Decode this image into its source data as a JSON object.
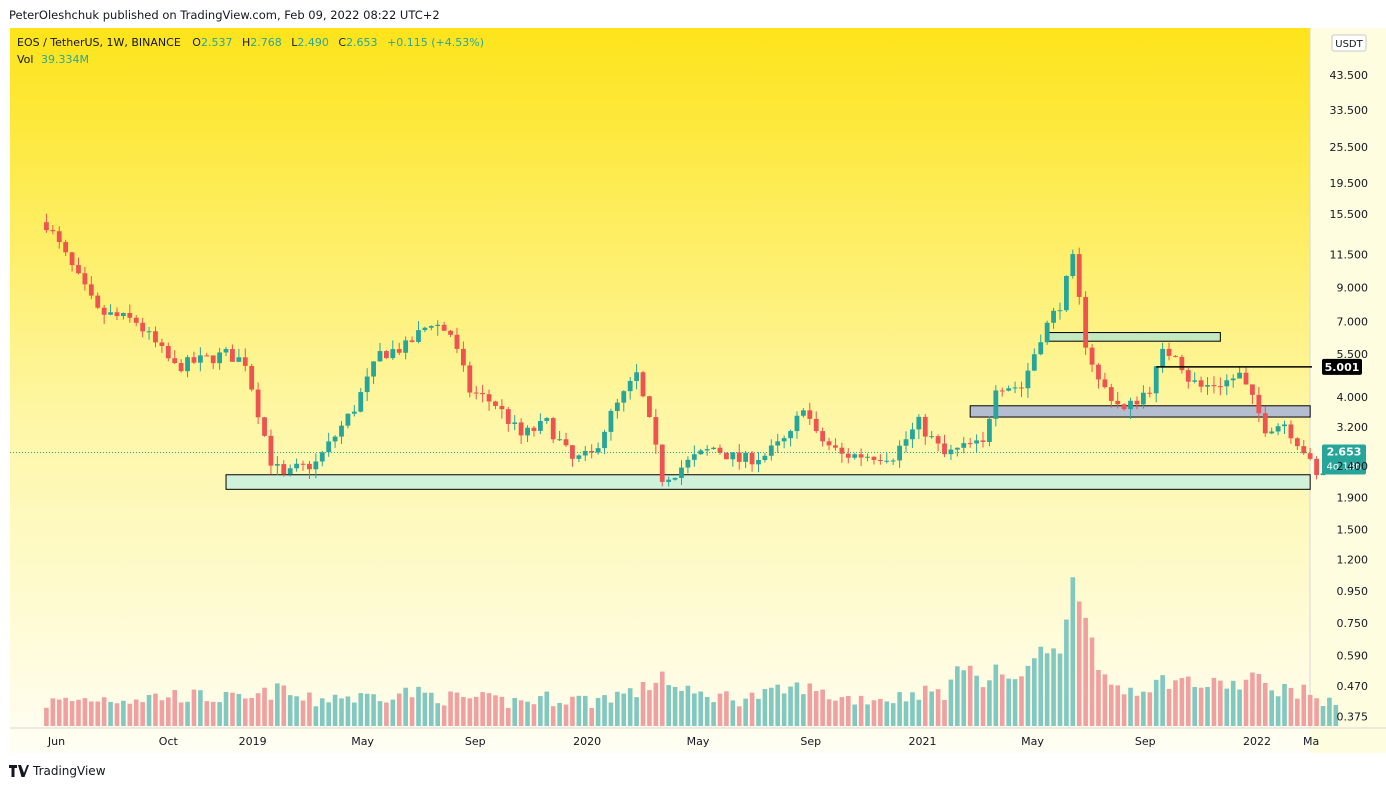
{
  "header": {
    "published_by": "PeterOleshchuk published on TradingView.com, Feb 09, 2022 08:22 UTC+2"
  },
  "legend": {
    "symbol": "EOS / TetherUS, 1W, BINANCE",
    "o_label": "O",
    "o_value": "2.537",
    "h_label": "H",
    "h_value": "2.768",
    "l_label": "L",
    "l_value": "2.490",
    "c_label": "C",
    "c_value": "2.653",
    "change": "+0.115 (+4.53%)",
    "vol_label": "Vol",
    "vol_value": "39.334M"
  },
  "footer": {
    "brand": "TradingView"
  },
  "colors": {
    "up": "#26a69a",
    "down": "#ef5350",
    "vol_up": "#80c8c0",
    "vol_down": "#f0a0a0",
    "bg_top": "#fde41a",
    "bg_bottom": "#fffef4",
    "axis_text": "#131722"
  },
  "chart_data": {
    "type": "candlestick",
    "symbol": "EOS / TetherUS",
    "interval": "1W",
    "exchange": "BINANCE",
    "currency": "USDT",
    "y_scale": "log",
    "ylim": [
      0.35,
      58
    ],
    "y_ticks": [
      "43.500",
      "33.500",
      "25.500",
      "19.500",
      "15.500",
      "11.500",
      "9.000",
      "7.000",
      "5.500",
      "4.000",
      "3.200",
      "2.400",
      "1.900",
      "1.500",
      "1.200",
      "0.950",
      "0.750",
      "0.590",
      "0.470",
      "0.375"
    ],
    "y_tick_values": [
      43.5,
      33.5,
      25.5,
      19.5,
      15.5,
      11.5,
      9.0,
      7.0,
      5.5,
      4.0,
      3.2,
      2.4,
      1.9,
      1.5,
      1.2,
      0.95,
      0.75,
      0.59,
      0.47,
      0.375
    ],
    "x_ticks": [
      "Jun",
      "Oct",
      "2019",
      "May",
      "Sep",
      "2020",
      "May",
      "Sep",
      "2021",
      "May",
      "Sep",
      "2022",
      "Ma"
    ],
    "x_tick_dates": [
      "2018-06-01",
      "2018-10-01",
      "2019-01-01",
      "2019-05-01",
      "2019-09-01",
      "2020-01-01",
      "2020-05-01",
      "2020-09-01",
      "2021-01-01",
      "2021-05-01",
      "2021-09-01",
      "2022-01-01",
      "2022-03-01"
    ],
    "x_range": [
      "2018-05-14",
      "2022-03-14"
    ],
    "first_candle": "2018-05-21",
    "last_price": "2.653",
    "last_price_value": 2.653,
    "countdown": "4d 18h",
    "line_label": "5.001",
    "line_level": 5.001,
    "anchors": [
      [
        0,
        14.5,
        0.415
      ],
      [
        8,
        7.5,
        0.43
      ],
      [
        14,
        7.0,
        0.43
      ],
      [
        20,
        5.0,
        0.44
      ],
      [
        28,
        5.5,
        0.43
      ],
      [
        31,
        5.2,
        0.42
      ],
      [
        35,
        2.5,
        0.45
      ],
      [
        37,
        2.2,
        0.46
      ],
      [
        39,
        2.35,
        0.43
      ],
      [
        42,
        2.45,
        0.42
      ],
      [
        45,
        3.0,
        0.44
      ],
      [
        48,
        3.7,
        0.43
      ],
      [
        52,
        5.5,
        0.44
      ],
      [
        56,
        5.8,
        0.45
      ],
      [
        60,
        7.0,
        0.44
      ],
      [
        63,
        6.4,
        0.43
      ],
      [
        66,
        4.2,
        0.43
      ],
      [
        70,
        3.8,
        0.42
      ],
      [
        74,
        3.0,
        0.42
      ],
      [
        78,
        3.3,
        0.43
      ],
      [
        82,
        2.5,
        0.43
      ],
      [
        85,
        2.6,
        0.42
      ],
      [
        88,
        3.5,
        0.44
      ],
      [
        92,
        4.7,
        0.45
      ],
      [
        94,
        3.3,
        0.47
      ],
      [
        96,
        2.2,
        0.52
      ],
      [
        98,
        2.3,
        0.46
      ],
      [
        101,
        2.55,
        0.44
      ],
      [
        104,
        2.75,
        0.44
      ],
      [
        108,
        2.5,
        0.43
      ],
      [
        112,
        2.6,
        0.44
      ],
      [
        116,
        3.0,
        0.46
      ],
      [
        118,
        3.8,
        0.47
      ],
      [
        120,
        3.0,
        0.45
      ],
      [
        124,
        2.6,
        0.43
      ],
      [
        128,
        2.6,
        0.43
      ],
      [
        132,
        2.6,
        0.43
      ],
      [
        136,
        3.3,
        0.45
      ],
      [
        140,
        2.6,
        0.45
      ],
      [
        144,
        2.8,
        0.58
      ],
      [
        146,
        2.8,
        0.46
      ],
      [
        148,
        4.4,
        0.53
      ],
      [
        152,
        4.3,
        0.48
      ],
      [
        155,
        6.3,
        0.65
      ],
      [
        158,
        8.0,
        0.58
      ],
      [
        160,
        11.0,
        1.05
      ],
      [
        162,
        6.0,
        0.82
      ],
      [
        164,
        4.5,
        0.5
      ],
      [
        168,
        3.6,
        0.46
      ],
      [
        172,
        4.3,
        0.47
      ],
      [
        174,
        5.5,
        0.49
      ],
      [
        176,
        5.6,
        0.49
      ],
      [
        178,
        4.6,
        0.49
      ],
      [
        180,
        4.3,
        0.47
      ],
      [
        184,
        4.5,
        0.48
      ],
      [
        186,
        4.7,
        0.47
      ],
      [
        188,
        3.9,
        0.51
      ],
      [
        190,
        3.2,
        0.47
      ],
      [
        193,
        3.3,
        0.46
      ],
      [
        196,
        2.7,
        0.45
      ],
      [
        198,
        2.2,
        0.44
      ],
      [
        199,
        2.3,
        0.42
      ],
      [
        200,
        2.54,
        0.41
      ],
      [
        201,
        2.653,
        0.4
      ]
    ],
    "zones": [
      {
        "from": "2018-12-03",
        "to": "2022-02-28",
        "low": 2.02,
        "high": 2.25,
        "fill": "#c8f0e0"
      },
      {
        "from": "2021-02-22",
        "to": "2022-02-28",
        "low": 3.45,
        "high": 3.75,
        "fill": "#a8b4d8"
      },
      {
        "from": "2021-05-17",
        "to": "2021-11-22",
        "low": 6.05,
        "high": 6.45,
        "fill": "#b8e6c8"
      }
    ]
  }
}
